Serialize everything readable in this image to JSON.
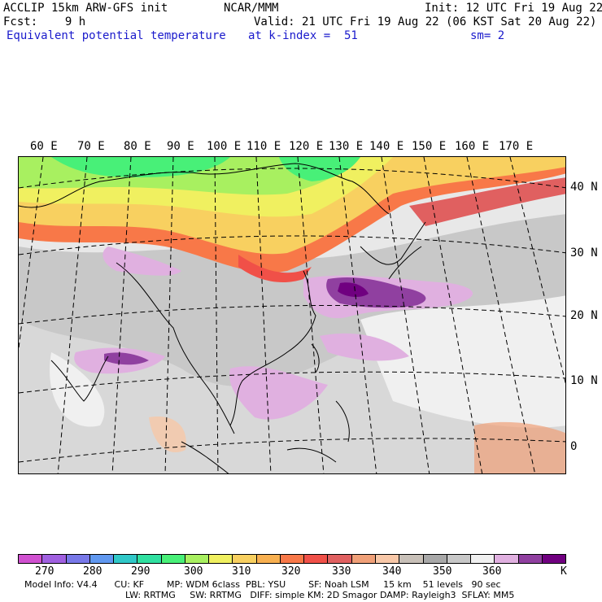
{
  "header": {
    "model_line": "ACCLIP 15km ARW-GFS init",
    "org": "NCAR/MMM",
    "init": "Init: 12 UTC Fri 19 Aug 22",
    "fcst": "Fcst:    9 h",
    "valid": "Valid: 21 UTC Fri 19 Aug 22 (06 KST Sat 20 Aug 22)",
    "field": "Equivalent potential temperature",
    "level": "at k-index =  51",
    "smooth": "sm= 2"
  },
  "map": {
    "lon_labels": [
      "60 E",
      "70 E",
      "80 E",
      "90 E",
      "100 E",
      "110 E",
      "120 E",
      "130 E",
      "140 E",
      "150 E",
      "160 E",
      "170 E"
    ],
    "lat_labels": [
      "40 N",
      "30 N",
      "20 N",
      "10 N",
      "0"
    ]
  },
  "colorbar": {
    "colors": [
      "#d050d0",
      "#a060e0",
      "#7878e8",
      "#6098f0",
      "#30c8c8",
      "#30e0a0",
      "#48f078",
      "#a8f060",
      "#f0f060",
      "#f8d060",
      "#f8b050",
      "#f87848",
      "#f05048",
      "#e06060",
      "#f0a078",
      "#f8c8a8",
      "#c8c0b8",
      "#a8a8a8",
      "#c8c8c8",
      "#f0f0f0",
      "#e0b0e0",
      "#9040a0",
      "#700080"
    ],
    "labels": [
      "270",
      "280",
      "290",
      "300",
      "310",
      "320",
      "330",
      "340",
      "350",
      "360"
    ],
    "unit": "K"
  },
  "footer": {
    "line1": "Model Info: V4.4      CU: KF        MP: WDM 6class  PBL: YSU        SF: Noah LSM     15 km    51 levels   90 sec",
    "line2": "LW: RRTMG     SW: RRTMG   DIFF: simple KM: 2D Smagor DAMP: Rayleigh3  SFLAY: MM5"
  }
}
